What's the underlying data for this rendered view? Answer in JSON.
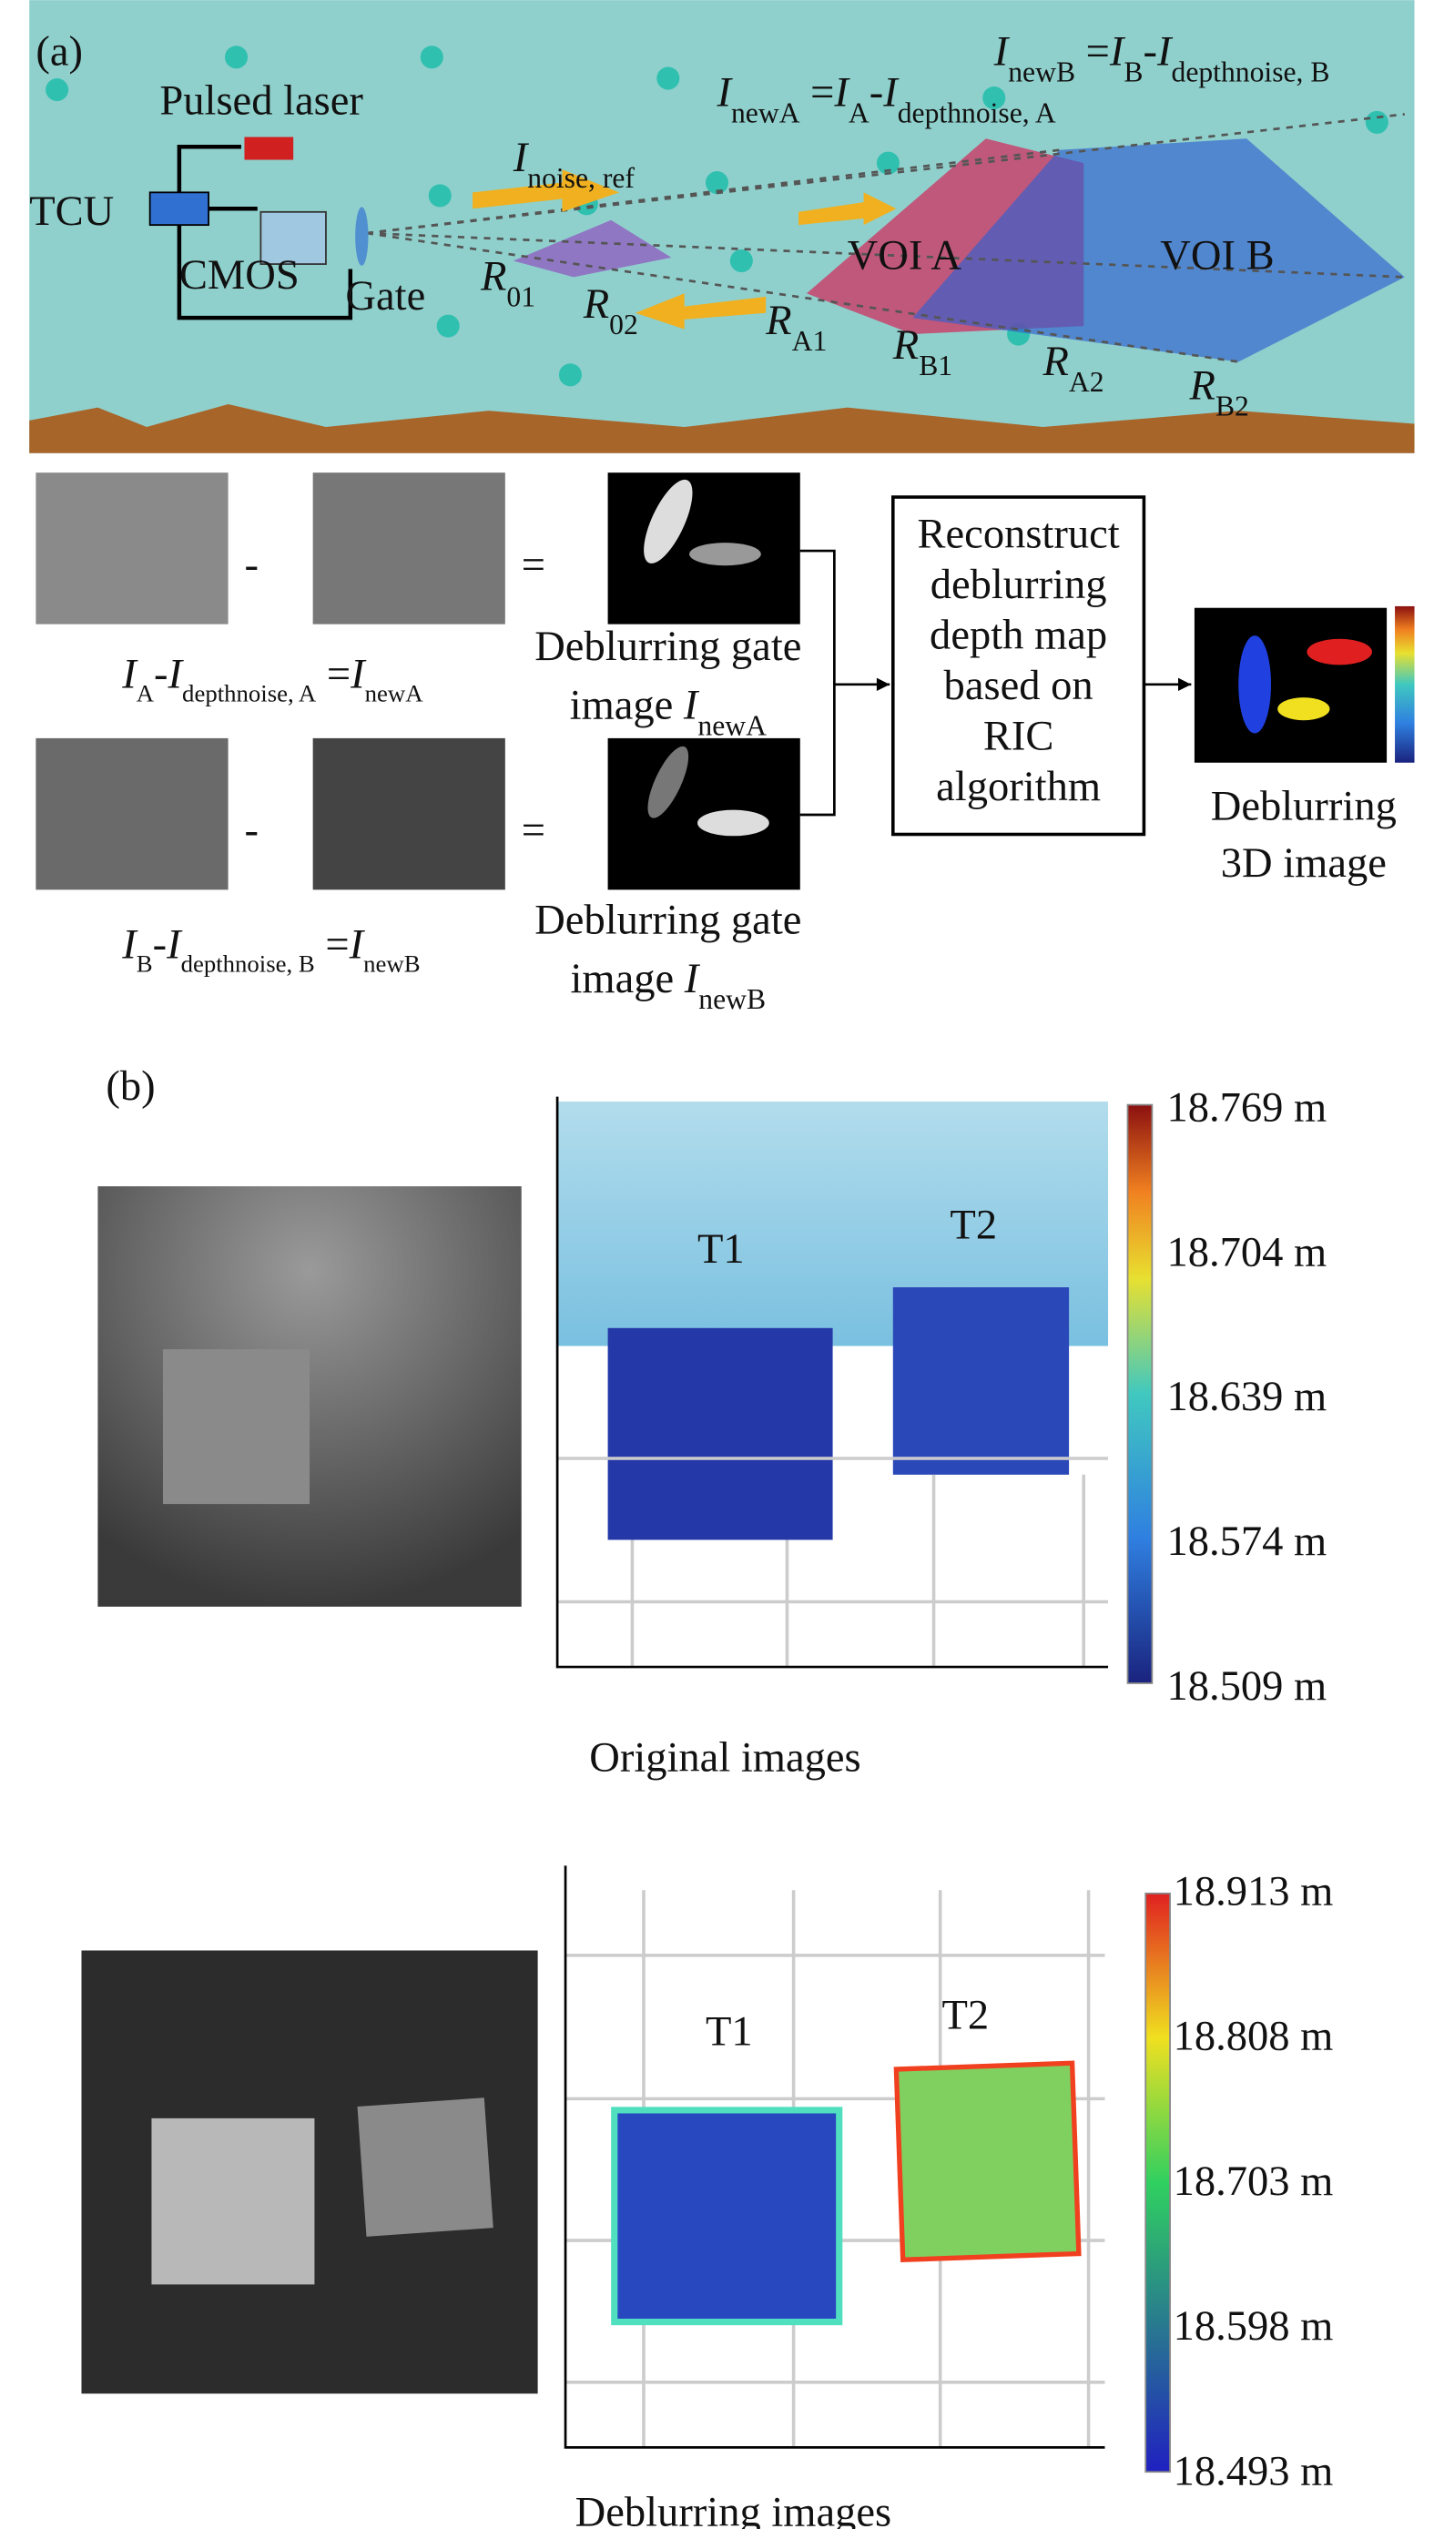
{
  "panel_a": {
    "label": "(a)",
    "pulsed_laser": "Pulsed laser",
    "tcu": "TCU",
    "cmos": "CMOS",
    "gate": "Gate",
    "voi_a": "VOI A",
    "voi_b": "VOI B",
    "minus": "-",
    "equals": "=",
    "new_b": [
      [
        {
          "text": "I",
          "italic": true
        },
        {
          "text": "newB",
          "sub": true
        },
        {
          "text": " ="
        },
        {
          "text": "I",
          "italic": true
        },
        {
          "text": "B",
          "sub": true
        },
        {
          "text": "-"
        },
        {
          "text": "I",
          "italic": true
        },
        {
          "text": "depthnoise, B",
          "sub": true
        }
      ]
    ],
    "new_a": [
      [
        {
          "text": "I",
          "italic": true
        },
        {
          "text": "newA",
          "sub": true
        },
        {
          "text": " ="
        },
        {
          "text": "I",
          "italic": true
        },
        {
          "text": "A",
          "sub": true
        },
        {
          "text": "-"
        },
        {
          "text": "I",
          "italic": true
        },
        {
          "text": "depthnoise, A",
          "sub": true
        }
      ]
    ],
    "noise_ref": [
      [
        {
          "text": "I",
          "italic": true
        },
        {
          "text": "noise, ref",
          "sub": true
        }
      ]
    ],
    "r01": [
      [
        {
          "text": "R",
          "italic": true
        },
        {
          "text": "01",
          "sub": true
        }
      ]
    ],
    "r02": [
      [
        {
          "text": "R",
          "italic": true
        },
        {
          "text": "02",
          "sub": true
        }
      ]
    ],
    "ra1": [
      [
        {
          "text": "R",
          "italic": true
        },
        {
          "text": "A1",
          "sub": true
        }
      ]
    ],
    "rb1": [
      [
        {
          "text": "R",
          "italic": true
        },
        {
          "text": "B1",
          "sub": true
        }
      ]
    ],
    "ra2": [
      [
        {
          "text": "R",
          "italic": true
        },
        {
          "text": "A2",
          "sub": true
        }
      ]
    ],
    "rb2": [
      [
        {
          "text": "R",
          "italic": true
        },
        {
          "text": "B2",
          "sub": true
        }
      ]
    ],
    "eq_a": [
      [
        {
          "text": "I",
          "italic": true
        },
        {
          "text": "A",
          "sub": true
        },
        {
          "text": "-"
        },
        {
          "text": "I",
          "italic": true
        },
        {
          "text": "depthnoise, A",
          "sub": true
        },
        {
          "text": " ="
        },
        {
          "text": "I",
          "italic": true
        },
        {
          "text": "newA",
          "sub": true
        }
      ]
    ],
    "eq_b": [
      [
        {
          "text": "I",
          "italic": true
        },
        {
          "text": "B",
          "sub": true
        },
        {
          "text": "-"
        },
        {
          "text": "I",
          "italic": true
        },
        {
          "text": "depthnoise, B",
          "sub": true
        },
        {
          "text": " ="
        },
        {
          "text": "I",
          "italic": true
        },
        {
          "text": "newB",
          "sub": true
        }
      ]
    ],
    "gate_image_a": [
      [
        {
          "text": "Deblurring gate"
        }
      ],
      [
        {
          "text": "image "
        },
        {
          "text": "I",
          "italic": true
        },
        {
          "text": "newA",
          "sub": true
        }
      ]
    ],
    "gate_image_b": [
      [
        {
          "text": "Deblurring gate"
        }
      ],
      [
        {
          "text": "image "
        },
        {
          "text": "I",
          "italic": true
        },
        {
          "text": "newB",
          "sub": true
        }
      ]
    ],
    "reconstruct": [
      [
        {
          "text": "Reconstruct"
        }
      ],
      [
        {
          "text": "deblurring"
        }
      ],
      [
        {
          "text": "depth map"
        }
      ],
      [
        {
          "text": "based on"
        }
      ],
      [
        {
          "text": "RIC"
        }
      ],
      [
        {
          "text": "algorithm"
        }
      ]
    ],
    "deblurring_3d": [
      [
        {
          "text": "Deblurring"
        }
      ],
      [
        {
          "text": "3D image"
        }
      ]
    ]
  },
  "panel_b": {
    "label": "(b)",
    "original": {
      "t1": "T1",
      "t2": "T2",
      "colorbar": [
        "18.769 m",
        "18.704 m",
        "18.639 m",
        "18.574 m",
        "18.509 m"
      ],
      "caption": "Original images"
    },
    "deblurring": {
      "t1": "T1",
      "t2": "T2",
      "colorbar": [
        "18.913 m",
        "18.808 m",
        "18.703 m",
        "18.598 m",
        "18.493 m"
      ],
      "caption": "Deblurring images"
    }
  }
}
